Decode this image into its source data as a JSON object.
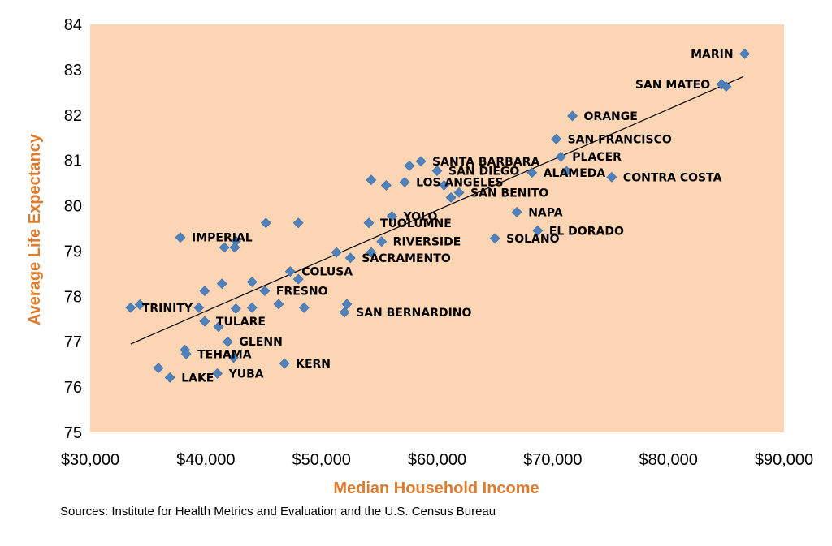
{
  "chart_data": {
    "type": "scatter",
    "xlabel": "Median Household Income",
    "ylabel": "Average Life Expectancy",
    "xlim": [
      30000,
      90000
    ],
    "ylim": [
      75,
      84
    ],
    "x_ticks": [
      30000,
      40000,
      50000,
      60000,
      70000,
      80000,
      90000
    ],
    "x_tick_labels": [
      "$30,000",
      "$40,000",
      "$50,000",
      "$60,000",
      "$70,000",
      "$80,000",
      "$90,000"
    ],
    "y_ticks": [
      75,
      76,
      77,
      78,
      79,
      80,
      81,
      82,
      83,
      84
    ],
    "y_tick_labels": [
      "75",
      "76",
      "77",
      "78",
      "79",
      "80",
      "81",
      "82",
      "83",
      "84"
    ],
    "plot_background": "#fcd5b5",
    "marker_color": "#4f81bd",
    "trendline": {
      "x": [
        33500,
        86500
      ],
      "y": [
        76.95,
        82.85
      ]
    },
    "points": [
      {
        "x": 86600,
        "y": 83.35,
        "label": "MARIN"
      },
      {
        "x": 84600,
        "y": 82.68,
        "label": "SAN MATEO"
      },
      {
        "x": 85000,
        "y": 82.63,
        "label": ""
      },
      {
        "x": 71700,
        "y": 81.98,
        "label": "ORANGE"
      },
      {
        "x": 70300,
        "y": 81.47,
        "label": "SAN FRANCISCO"
      },
      {
        "x": 70700,
        "y": 81.08,
        "label": "PLACER"
      },
      {
        "x": 71200,
        "y": 80.76,
        "label": ""
      },
      {
        "x": 68200,
        "y": 80.73,
        "label": "ALAMEDA"
      },
      {
        "x": 75100,
        "y": 80.63,
        "label": "CONTRA COSTA"
      },
      {
        "x": 58600,
        "y": 80.98,
        "label": "SANTA BARBARA"
      },
      {
        "x": 57600,
        "y": 80.88,
        "label": ""
      },
      {
        "x": 60000,
        "y": 80.77,
        "label": "SAN DIEGO"
      },
      {
        "x": 54300,
        "y": 80.57,
        "label": ""
      },
      {
        "x": 57200,
        "y": 80.52,
        "label": "LOS ANGELES"
      },
      {
        "x": 55600,
        "y": 80.45,
        "label": ""
      },
      {
        "x": 60600,
        "y": 80.45,
        "label": ""
      },
      {
        "x": 61900,
        "y": 80.29,
        "label": "SAN BENITO"
      },
      {
        "x": 61200,
        "y": 80.18,
        "label": ""
      },
      {
        "x": 66900,
        "y": 79.86,
        "label": "NAPA"
      },
      {
        "x": 56100,
        "y": 79.77,
        "label": "YOLO"
      },
      {
        "x": 54100,
        "y": 79.62,
        "label": "TUOLUMNE"
      },
      {
        "x": 45200,
        "y": 79.62,
        "label": ""
      },
      {
        "x": 48000,
        "y": 79.62,
        "label": ""
      },
      {
        "x": 68700,
        "y": 79.45,
        "label": "EL DORADO"
      },
      {
        "x": 65000,
        "y": 79.28,
        "label": "SOLANO"
      },
      {
        "x": 55200,
        "y": 79.21,
        "label": "RIVERSIDE"
      },
      {
        "x": 37800,
        "y": 79.3,
        "label": "IMPERIAL"
      },
      {
        "x": 42600,
        "y": 79.22,
        "label": ""
      },
      {
        "x": 41600,
        "y": 79.08,
        "label": ""
      },
      {
        "x": 42500,
        "y": 79.08,
        "label": ""
      },
      {
        "x": 51300,
        "y": 78.97,
        "label": ""
      },
      {
        "x": 54300,
        "y": 78.97,
        "label": ""
      },
      {
        "x": 52500,
        "y": 78.85,
        "label": "SACRAMENTO"
      },
      {
        "x": 47300,
        "y": 78.55,
        "label": "COLUSA"
      },
      {
        "x": 48000,
        "y": 78.38,
        "label": ""
      },
      {
        "x": 44000,
        "y": 78.32,
        "label": ""
      },
      {
        "x": 41400,
        "y": 78.28,
        "label": ""
      },
      {
        "x": 39900,
        "y": 78.12,
        "label": ""
      },
      {
        "x": 45100,
        "y": 78.12,
        "label": "FRESNO"
      },
      {
        "x": 46300,
        "y": 77.83,
        "label": ""
      },
      {
        "x": 52200,
        "y": 77.83,
        "label": ""
      },
      {
        "x": 33500,
        "y": 77.75,
        "label": "TRINITY"
      },
      {
        "x": 34300,
        "y": 77.82,
        "label": ""
      },
      {
        "x": 39400,
        "y": 77.75,
        "label": ""
      },
      {
        "x": 42600,
        "y": 77.73,
        "label": ""
      },
      {
        "x": 44000,
        "y": 77.75,
        "label": ""
      },
      {
        "x": 48500,
        "y": 77.75,
        "label": ""
      },
      {
        "x": 52000,
        "y": 77.65,
        "label": "SAN BERNARDINO"
      },
      {
        "x": 39900,
        "y": 77.45,
        "label": "TULARE"
      },
      {
        "x": 41100,
        "y": 77.33,
        "label": ""
      },
      {
        "x": 41900,
        "y": 77.0,
        "label": "GLENN"
      },
      {
        "x": 38200,
        "y": 76.82,
        "label": ""
      },
      {
        "x": 38300,
        "y": 76.73,
        "label": "TEHAMA"
      },
      {
        "x": 42400,
        "y": 76.65,
        "label": ""
      },
      {
        "x": 46800,
        "y": 76.52,
        "label": "KERN"
      },
      {
        "x": 35900,
        "y": 76.42,
        "label": ""
      },
      {
        "x": 41000,
        "y": 76.3,
        "label": "YUBA"
      },
      {
        "x": 36900,
        "y": 76.21,
        "label": "LAKE"
      }
    ]
  },
  "source_text": "Sources: Institute for Health Metrics and Evaluation and the U.S. Census Bureau"
}
